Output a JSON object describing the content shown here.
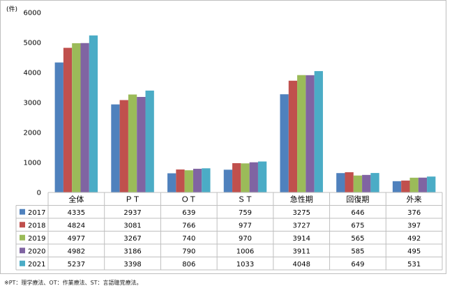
{
  "chart_data": {
    "type": "bar",
    "unit_label": "(件)",
    "categories": [
      "全体",
      "ＰＴ",
      "ＯＴ",
      "ＳＴ",
      "急性期",
      "回復期",
      "外来"
    ],
    "series": [
      {
        "name": "2017",
        "color": "#4f81bd",
        "values": [
          4335,
          2937,
          639,
          759,
          3275,
          646,
          376
        ]
      },
      {
        "name": "2018",
        "color": "#c0504d",
        "values": [
          4824,
          3081,
          766,
          977,
          3727,
          675,
          397
        ]
      },
      {
        "name": "2019",
        "color": "#9bbb59",
        "values": [
          4977,
          3267,
          740,
          970,
          3914,
          565,
          492
        ]
      },
      {
        "name": "2020",
        "color": "#8064a2",
        "values": [
          4982,
          3186,
          790,
          1006,
          3911,
          585,
          495
        ]
      },
      {
        "name": "2021",
        "color": "#4bacc6",
        "values": [
          5237,
          3398,
          806,
          1033,
          4048,
          649,
          531
        ]
      }
    ],
    "ylim": [
      0,
      6000
    ],
    "yticks": [
      0,
      1000,
      2000,
      3000,
      4000,
      5000,
      6000
    ],
    "grid": false,
    "legend": "data-table"
  },
  "footnote": "※PT：理学療法、OT：作業療法、ST：言語聴覚療法。"
}
